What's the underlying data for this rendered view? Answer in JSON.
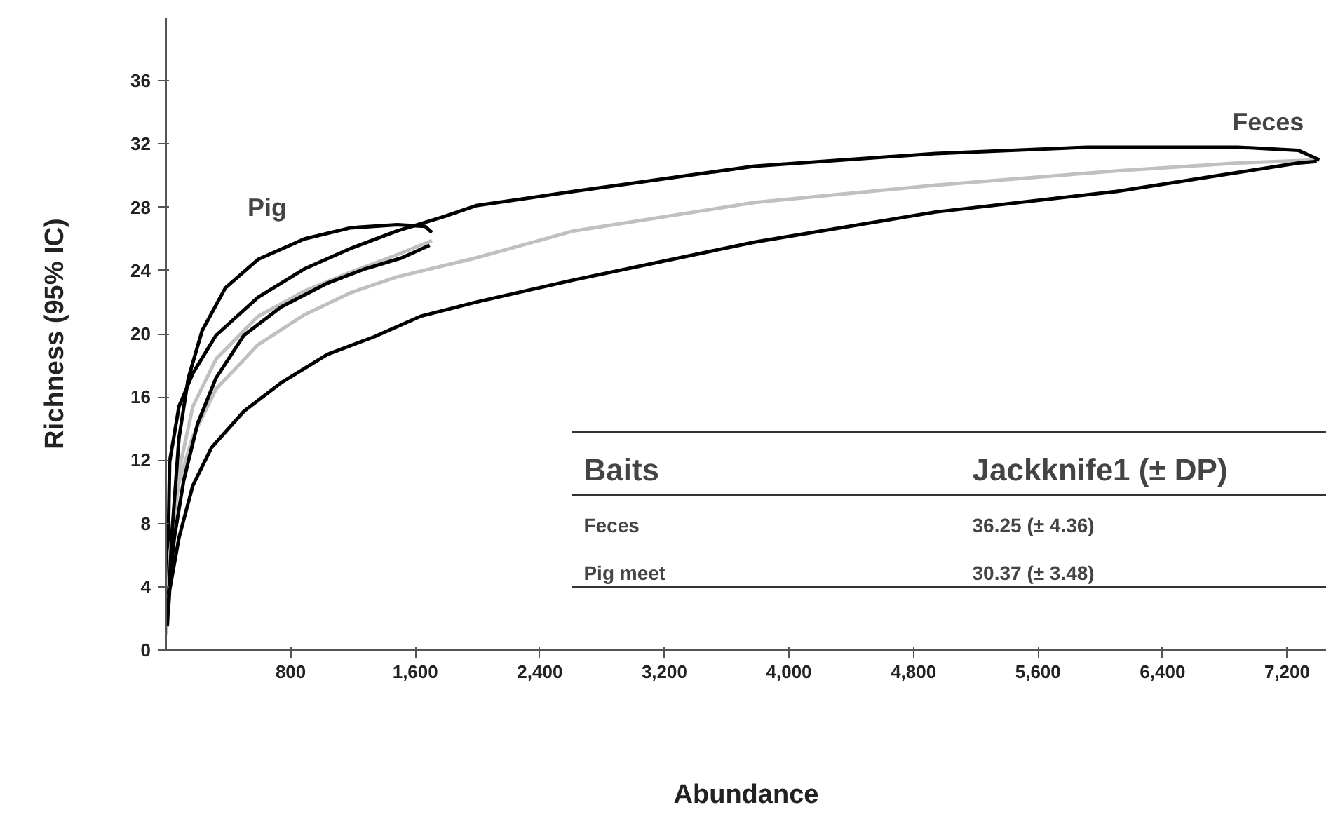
{
  "chart_data": {
    "type": "line",
    "xlabel": "Abundance",
    "ylabel": "Richness (95% IC)",
    "xlim": [
      0,
      7450
    ],
    "ylim": [
      0,
      40
    ],
    "xticks": [
      {
        "value": 800,
        "label": "800"
      },
      {
        "value": 1600,
        "label": "1,600"
      },
      {
        "value": 2400,
        "label": "2,400"
      },
      {
        "value": 3200,
        "label": "3,200"
      },
      {
        "value": 4000,
        "label": "4,000"
      },
      {
        "value": 4800,
        "label": "4,800"
      },
      {
        "value": 5600,
        "label": "5,600"
      },
      {
        "value": 6400,
        "label": "6,400"
      },
      {
        "value": 7200,
        "label": "7,200"
      }
    ],
    "yticks": [
      0,
      4,
      8,
      12,
      16,
      20,
      24,
      28,
      32,
      36
    ],
    "line_style": "solid",
    "series": [
      {
        "color": "#c0c0c0",
        "x": [
          0,
          22,
          82,
          171,
          320,
          589,
          887,
          1185,
          1483,
          1990,
          2616,
          3779,
          4942,
          6105,
          6883,
          7407
        ],
        "values": [
          1,
          6.5,
          10.6,
          13.5,
          16.5,
          19.3,
          21.2,
          22.6,
          23.6,
          24.8,
          26.5,
          28.3,
          29.4,
          30.3,
          30.8,
          31.0
        ]
      },
      {
        "color": "#000000",
        "x": [
          7,
          22,
          82,
          171,
          320,
          589,
          887,
          1185,
          1483,
          1781,
          1990,
          2616,
          3779,
          4942,
          5914,
          6883,
          7272,
          7407
        ],
        "values": [
          3.5,
          11.9,
          15.4,
          17.5,
          19.9,
          22.3,
          24.1,
          25.4,
          26.5,
          27.4,
          28.1,
          29.0,
          30.6,
          31.4,
          31.8,
          31.8,
          31.6,
          31.0
        ]
      },
      {
        "color": "#000000",
        "x": [
          14,
          22,
          82,
          171,
          291,
          499,
          738,
          1036,
          1334,
          1632,
          1990,
          2616,
          3779,
          4942,
          6105,
          6883,
          7272,
          7390
        ],
        "values": [
          2.5,
          3.8,
          7.1,
          10.4,
          12.8,
          15.1,
          16.9,
          18.7,
          19.8,
          21.1,
          22.0,
          23.4,
          25.8,
          27.7,
          29.0,
          30.2,
          30.8,
          30.9
        ]
      },
      {
        "color": "#c0c0c0",
        "x": [
          0,
          22,
          82,
          171,
          320,
          589,
          887,
          1185,
          1483,
          1707
        ],
        "values": [
          1,
          5.9,
          11.3,
          15.4,
          18.4,
          21.1,
          22.7,
          23.9,
          25.0,
          25.9
        ]
      },
      {
        "color": "#000000",
        "x": [
          7,
          37,
          82,
          142,
          231,
          380,
          589,
          887,
          1185,
          1483,
          1662,
          1707
        ],
        "values": [
          1.5,
          7.4,
          13.4,
          17.2,
          20.2,
          22.9,
          24.7,
          26.0,
          26.7,
          26.9,
          26.8,
          26.4
        ]
      },
      {
        "color": "#000000",
        "x": [
          14,
          52,
          112,
          201,
          320,
          499,
          738,
          1036,
          1275,
          1513,
          1692
        ],
        "values": [
          3.5,
          7.1,
          10.7,
          14.3,
          17.2,
          19.9,
          21.7,
          23.2,
          24.1,
          24.8,
          25.6
        ]
      }
    ],
    "annotations": [
      "Pig",
      "Feces",
      "Baits",
      "Jackknife1 (± DP)",
      "Feces",
      "36.25 (± 4.36)",
      "Pig meet",
      "30.37 (± 3.48)"
    ]
  }
}
